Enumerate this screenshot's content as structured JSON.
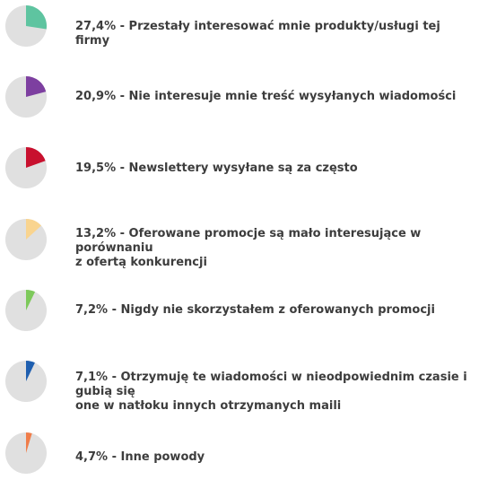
{
  "chart_data": {
    "type": "pie",
    "title": "",
    "remainder_color": "#e0e0e0",
    "items": [
      {
        "value": 27.4,
        "label": "27,4% - Przestały interesować mnie produkty/usługi tej firmy",
        "color": "#5ec4a0"
      },
      {
        "value": 20.9,
        "label": "20,9% - Nie interesuje mnie treść wysyłanych wiadomości",
        "color": "#7d3fa0"
      },
      {
        "value": 19.5,
        "label": "19,5% - Newslettery wysyłane są za często",
        "color": "#c8102e"
      },
      {
        "value": 13.2,
        "label": "13,2% - Oferowane promocje są mało interesujące w porównaniu\nz ofertą konkurencji",
        "color": "#f9d48f"
      },
      {
        "value": 7.2,
        "label": "7,2% - Nigdy nie skorzystałem z oferowanych promocji",
        "color": "#7dc95b"
      },
      {
        "value": 7.1,
        "label": "7,1% - Otrzymuję te wiadomości w nieodpowiednim czasie i gubią się\none w natłoku innych otrzymanych maili",
        "color": "#1f5fb0"
      },
      {
        "value": 4.7,
        "label": "4,7% - Inne powody",
        "color": "#f07d4a"
      }
    ]
  }
}
